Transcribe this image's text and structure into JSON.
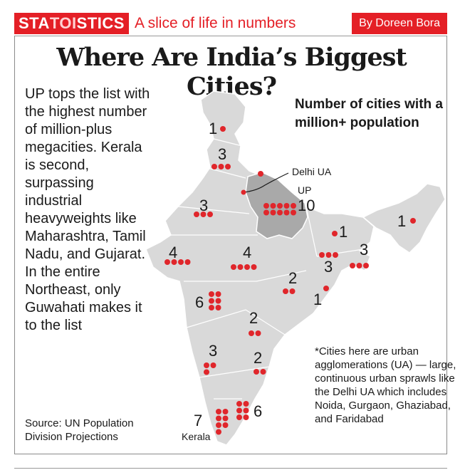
{
  "header": {
    "brand_pre": "STA",
    "brand_toi": "TOI",
    "brand_post": "STICS",
    "tagline": "A slice of life in numbers",
    "byline": "By Doreen Bora"
  },
  "title": "Where Are India’s Biggest Cities?",
  "lede": "UP tops the list with the highest number of million-plus megacities. Kerala is second, surpassing industrial heavyweights like Maharashtra, Tamil Nadu, and Gujarat. In the entire Northeast, only Guwahati makes it to the list",
  "source": "Source: UN Population Division Projections",
  "legend_title": "Number of cities with a million+ population",
  "note": "*Cities here are urban agglomerations (UA) — large, continuous urban sprawls like the Delhi UA which includes Noida, Gurgaon, Ghaziabad, and Faridabad",
  "colors": {
    "accent": "#e41f26",
    "map_fill": "#d9d9d9",
    "up_fill": "#a9a9a9",
    "dot": "#e0262b",
    "border": "#ffffff"
  },
  "chart_data": {
    "type": "map",
    "title": "Number of cities with a million+ population",
    "units": "cities",
    "regions": [
      {
        "name": "",
        "value": 1
      },
      {
        "name": "",
        "value": 3
      },
      {
        "name": "",
        "value": 1
      },
      {
        "name": "UP",
        "value": 10
      },
      {
        "name": "",
        "value": 3
      },
      {
        "name": "",
        "value": 4
      },
      {
        "name": "",
        "value": 4
      },
      {
        "name": "",
        "value": 1
      },
      {
        "name": "",
        "value": 3
      },
      {
        "name": "",
        "value": 3
      },
      {
        "name": "",
        "value": 2
      },
      {
        "name": "",
        "value": 1
      },
      {
        "name": "",
        "value": 6
      },
      {
        "name": "",
        "value": 2
      },
      {
        "name": "",
        "value": 3
      },
      {
        "name": "",
        "value": 2
      },
      {
        "name": "Kerala",
        "value": 7
      },
      {
        "name": "",
        "value": 6
      },
      {
        "name": "",
        "value": 1
      }
    ],
    "callouts": [
      "Delhi UA"
    ]
  }
}
